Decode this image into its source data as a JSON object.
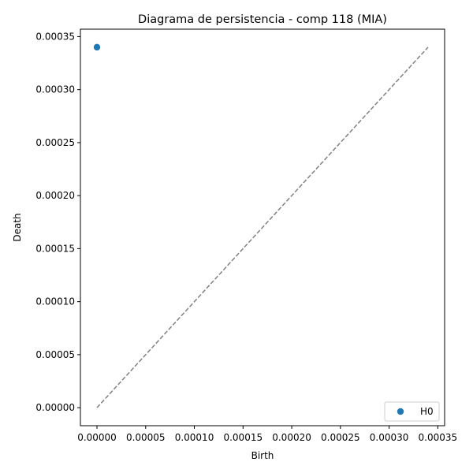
{
  "chart_data": {
    "type": "scatter",
    "title": "Diagrama de persistencia - comp 118 (MIA)",
    "xlabel": "Birth",
    "ylabel": "Death",
    "xlim": [
      -1.7e-05,
      0.000357
    ],
    "ylim": [
      -1.7e-05,
      0.000357
    ],
    "xticks": [
      "0.00000",
      "0.00005",
      "0.00010",
      "0.00015",
      "0.00020",
      "0.00025",
      "0.00030",
      "0.00035"
    ],
    "xtick_values": [
      0,
      5e-05,
      0.0001,
      0.00015,
      0.0002,
      0.00025,
      0.0003,
      0.00035
    ],
    "yticks": [
      "0.00000",
      "0.00005",
      "0.00010",
      "0.00015",
      "0.00020",
      "0.00025",
      "0.00030",
      "0.00035"
    ],
    "ytick_values": [
      0,
      5e-05,
      0.0001,
      0.00015,
      0.0002,
      0.00025,
      0.0003,
      0.00035
    ],
    "grid": false,
    "legend_position": "bottom-right",
    "series": [
      {
        "name": "H0",
        "color": "#1f77b4",
        "points": [
          [
            0.0,
            0.00034
          ]
        ]
      }
    ],
    "diagonal": {
      "from": [
        0.0,
        0.0
      ],
      "to": [
        0.00034,
        0.00034
      ],
      "color": "#808080",
      "style": "dashed"
    }
  }
}
